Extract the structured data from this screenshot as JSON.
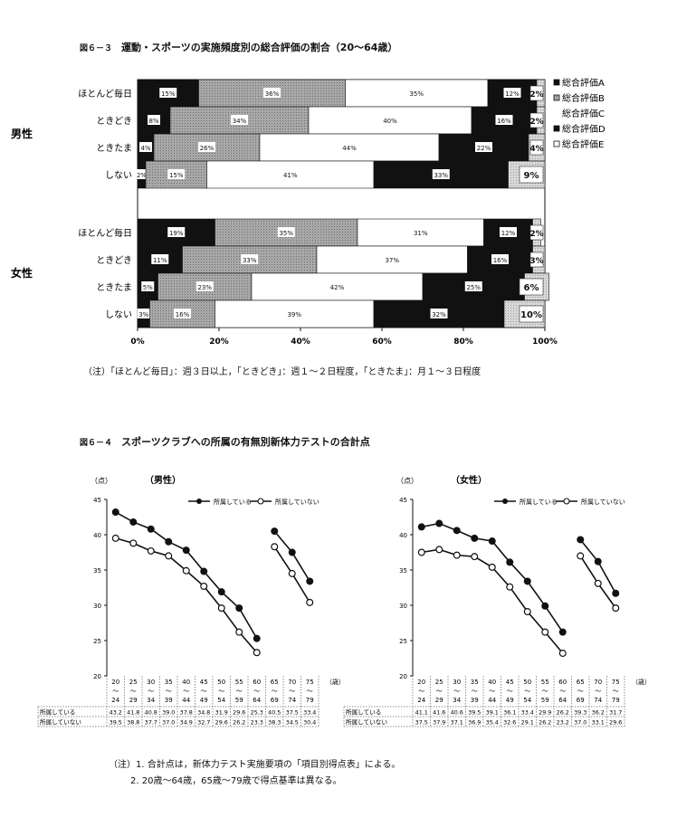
{
  "fig63": {
    "number": "図６－３",
    "title": "運動・スポーツの実施頻度別の総合評価の割合（20～64歳）",
    "note": "（注）「ほとんど毎日」：週３日以上，「ときどき」：週１～２日程度，「ときたま」：月１～３日程度"
  },
  "fig64": {
    "number": "図６－４",
    "title": "スポーツクラブへの所属の有無別新体力テストの合計点",
    "note1": "（注）1. 合計点は，新体力テスト実施要項の「項目別得点表」による。",
    "note2": "2. 20歳～64歳，65歳～79歳で得点基準は異なる。"
  },
  "chart_data": [
    {
      "type": "bar",
      "stacked": true,
      "orientation": "horizontal",
      "categories": [
        "ほとんど毎日",
        "ときどき",
        "ときたま",
        "しない"
      ],
      "groups": [
        "男性",
        "女性"
      ],
      "series": [
        {
          "name": "総合評価A",
          "color": "#111111",
          "values": {
            "男性": [
              15,
              8,
              4,
              2
            ],
            "女性": [
              19,
              11,
              5,
              3
            ]
          },
          "labels": {
            "男性": [
              "15%",
              "8%",
              "4%",
              "2%"
            ],
            "女性": [
              "19%",
              "11%",
              "5%",
              "3%"
            ]
          }
        },
        {
          "name": "総合評価B",
          "color": "#9a9a9a",
          "values": {
            "男性": [
              36,
              34,
              26,
              15
            ],
            "女性": [
              35,
              33,
              23,
              16
            ]
          },
          "labels": {
            "男性": [
              "36%",
              "34%",
              "26%",
              "15%"
            ],
            "女性": [
              "35%",
              "33%",
              "23%",
              "16%"
            ]
          }
        },
        {
          "name": "総合評価C",
          "color": "#ffffff",
          "values": {
            "男性": [
              35,
              40,
              44,
              41
            ],
            "女性": [
              31,
              37,
              42,
              39
            ]
          },
          "labels": {
            "男性": [
              "35%",
              "40%",
              "44%",
              "41%"
            ],
            "女性": [
              "31%",
              "37%",
              "42%",
              "39%"
            ]
          }
        },
        {
          "name": "総合評価D",
          "color": "#111111",
          "values": {
            "男性": [
              12,
              16,
              22,
              33
            ],
            "女性": [
              12,
              16,
              25,
              32
            ]
          },
          "labels": {
            "男性": [
              "12%",
              "16%",
              "22%",
              "33%"
            ],
            "女性": [
              "12%",
              "16%",
              "25%",
              "32%"
            ]
          }
        },
        {
          "name": "総合評価E",
          "color": "#ffffff",
          "values": {
            "男性": [
              2,
              2,
              4,
              9
            ],
            "女性": [
              2,
              3,
              6,
              10
            ]
          },
          "labels": {
            "男性": [
              "2%",
              "2%",
              "4%",
              "9%"
            ],
            "女性": [
              "2%",
              "3%",
              "6%",
              "10%"
            ]
          }
        }
      ],
      "xticks": [
        "0%",
        "20%",
        "40%",
        "60%",
        "80%",
        "100%"
      ],
      "xlim": [
        0,
        100
      ],
      "legend_position": "right"
    },
    {
      "type": "line",
      "title": "（男性）",
      "ylabel": "（点）",
      "xunit": "（歳）",
      "ylim": [
        20,
        45
      ],
      "yticks": [
        "20",
        "25",
        "30",
        "35",
        "40",
        "45"
      ],
      "age_groups": [
        {
          "top": "20",
          "mid": "～",
          "bottom": "24"
        },
        {
          "top": "25",
          "mid": "～",
          "bottom": "29"
        },
        {
          "top": "30",
          "mid": "～",
          "bottom": "34"
        },
        {
          "top": "35",
          "mid": "～",
          "bottom": "39"
        },
        {
          "top": "40",
          "mid": "～",
          "bottom": "44"
        },
        {
          "top": "45",
          "mid": "～",
          "bottom": "49"
        },
        {
          "top": "50",
          "mid": "～",
          "bottom": "54"
        },
        {
          "top": "55",
          "mid": "～",
          "bottom": "59"
        },
        {
          "top": "60",
          "mid": "～",
          "bottom": "64"
        },
        {
          "top": "65",
          "mid": "～",
          "bottom": "69"
        },
        {
          "top": "70",
          "mid": "～",
          "bottom": "74"
        },
        {
          "top": "75",
          "mid": "～",
          "bottom": "79"
        }
      ],
      "segments": [
        [
          0,
          8
        ],
        [
          9,
          11
        ]
      ],
      "series": [
        {
          "name": "所属している",
          "marker": "filled",
          "values": [
            43.2,
            41.8,
            40.8,
            39.0,
            37.8,
            34.8,
            31.9,
            29.6,
            25.3,
            40.5,
            37.5,
            33.4
          ],
          "table_values": [
            "43.2",
            "41.8",
            "40.8",
            "39.0",
            "37.8",
            "34.8",
            "31.9",
            "29.6",
            "25.3",
            "40.5",
            "37.5",
            "33.4"
          ]
        },
        {
          "name": "所属していない",
          "marker": "open",
          "values": [
            39.5,
            38.8,
            37.7,
            37.0,
            34.9,
            32.7,
            29.6,
            26.2,
            23.3,
            38.3,
            34.5,
            30.4
          ],
          "table_values": [
            "39.5",
            "38.8",
            "37.7",
            "37.0",
            "34.9",
            "32.7",
            "29.6",
            "26.2",
            "23.3",
            "38.3",
            "34.5",
            "30.4"
          ]
        }
      ]
    },
    {
      "type": "line",
      "title": "（女性）",
      "ylabel": "（点）",
      "xunit": "（歳）",
      "ylim": [
        20,
        45
      ],
      "yticks": [
        "20",
        "25",
        "30",
        "35",
        "40",
        "45"
      ],
      "age_groups": [
        {
          "top": "20",
          "mid": "～",
          "bottom": "24"
        },
        {
          "top": "25",
          "mid": "～",
          "bottom": "29"
        },
        {
          "top": "30",
          "mid": "～",
          "bottom": "34"
        },
        {
          "top": "35",
          "mid": "～",
          "bottom": "39"
        },
        {
          "top": "40",
          "mid": "～",
          "bottom": "44"
        },
        {
          "top": "45",
          "mid": "～",
          "bottom": "49"
        },
        {
          "top": "50",
          "mid": "～",
          "bottom": "54"
        },
        {
          "top": "55",
          "mid": "～",
          "bottom": "59"
        },
        {
          "top": "60",
          "mid": "～",
          "bottom": "64"
        },
        {
          "top": "65",
          "mid": "～",
          "bottom": "69"
        },
        {
          "top": "70",
          "mid": "～",
          "bottom": "74"
        },
        {
          "top": "75",
          "mid": "～",
          "bottom": "79"
        }
      ],
      "segments": [
        [
          0,
          8
        ],
        [
          9,
          11
        ]
      ],
      "series": [
        {
          "name": "所属している",
          "marker": "filled",
          "values": [
            41.1,
            41.6,
            40.6,
            39.5,
            39.1,
            36.1,
            33.4,
            29.9,
            26.2,
            39.3,
            36.2,
            31.7
          ],
          "table_values": [
            "41.1",
            "41.6",
            "40.6",
            "39.5",
            "39.1",
            "36.1",
            "33.4",
            "29.9",
            "26.2",
            "39.3",
            "36.2",
            "31.7"
          ]
        },
        {
          "name": "所属していない",
          "marker": "open",
          "values": [
            37.5,
            37.9,
            37.1,
            36.9,
            35.4,
            32.6,
            29.1,
            26.2,
            23.2,
            37.0,
            33.1,
            29.6
          ],
          "table_values": [
            "37.5",
            "37.9",
            "37.1",
            "36.9",
            "35.4",
            "32.6",
            "29.1",
            "26.2",
            "23.2",
            "37.0",
            "33.1",
            "29.6"
          ]
        }
      ]
    }
  ]
}
